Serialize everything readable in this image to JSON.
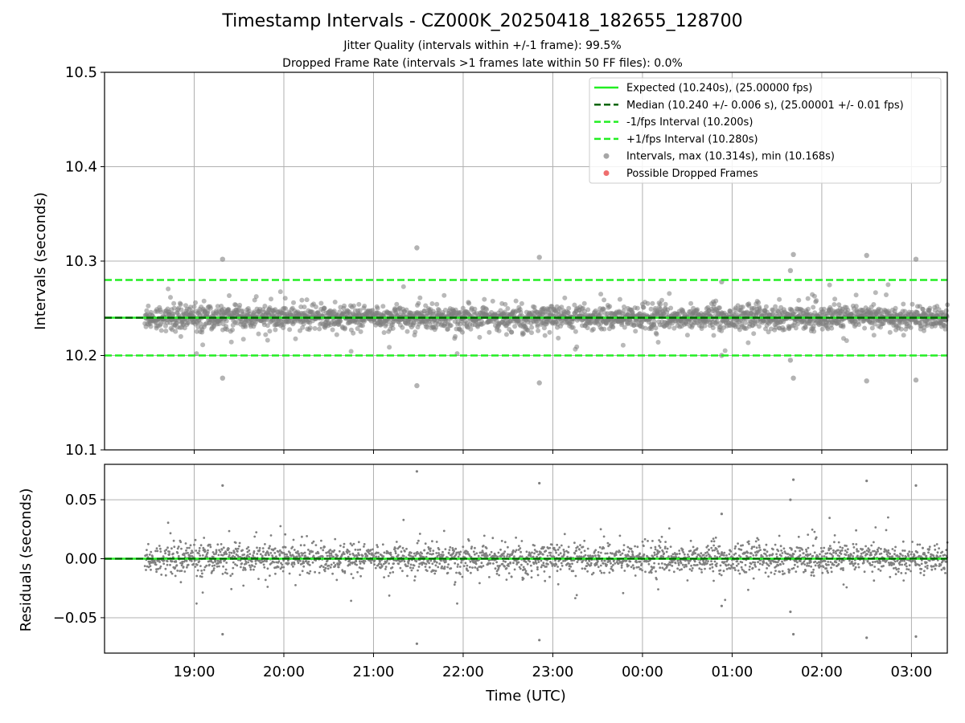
{
  "chart_data": [
    {
      "type": "scatter",
      "title": "Timestamp Intervals - CZ000K_20250418_182655_128700",
      "subtitle_1": "Jitter Quality (intervals within +/-1 frame): 99.5%",
      "subtitle_2": "Dropped Frame Rate (intervals >1 frames late within 50 FF files): 0.0%",
      "ylabel": "Intervals (seconds)",
      "ylim": [
        10.1,
        10.5
      ],
      "yticks": [
        "10.1",
        "10.2",
        "10.3",
        "10.4",
        "10.5"
      ],
      "grid": true,
      "legend_placement": "top-right",
      "legend": [
        {
          "label": "Expected (10.240s), (25.00000 fps)",
          "style": "solid",
          "color": "#22ee22"
        },
        {
          "label": "Median (10.240 +/- 0.006 s), (25.00001 +/- 0.01 fps)",
          "style": "dashed",
          "color": "#006400"
        },
        {
          "label": "-1/fps Interval (10.200s)",
          "style": "dashed",
          "color": "#22ee22"
        },
        {
          "label": "+1/fps Interval (10.280s)",
          "style": "dashed",
          "color": "#22ee22"
        },
        {
          "label": "Intervals, max (10.314s), min (10.168s)",
          "style": "marker",
          "color": "#808080"
        },
        {
          "label": "Possible Dropped Frames",
          "style": "marker",
          "color": "#e83030"
        }
      ],
      "reference_lines": {
        "expected": 10.24,
        "median": 10.24,
        "minus_one_frame": 10.2,
        "plus_one_frame": 10.28
      },
      "x_start_hours_utc": 18.45,
      "x_end_hours_utc": 27.4,
      "interval_stats": {
        "max": 10.314,
        "min": 10.168,
        "median": 10.24,
        "typical_spread": 0.006
      },
      "highlighted_points": [
        {
          "time": "19:19",
          "y": 10.302
        },
        {
          "time": "19:19",
          "y": 10.176
        },
        {
          "time": "21:29",
          "y": 10.314
        },
        {
          "time": "21:29",
          "y": 10.168
        },
        {
          "time": "22:51",
          "y": 10.304
        },
        {
          "time": "22:51",
          "y": 10.171
        },
        {
          "time": "01:41",
          "y": 10.307
        },
        {
          "time": "01:41",
          "y": 10.176
        },
        {
          "time": "02:30",
          "y": 10.306
        },
        {
          "time": "02:30",
          "y": 10.173
        },
        {
          "time": "03:03",
          "y": 10.302
        },
        {
          "time": "03:03",
          "y": 10.174
        },
        {
          "time": "00:53",
          "y": 10.278
        },
        {
          "time": "00:53",
          "y": 10.2
        },
        {
          "time": "01:39",
          "y": 10.29
        },
        {
          "time": "01:39",
          "y": 10.195
        }
      ],
      "colors": {
        "points": "#808080",
        "expected": "#22ee22",
        "median": "#006400",
        "dropped": "#e83030",
        "grid": "#b0b0b0"
      }
    },
    {
      "type": "scatter",
      "ylabel": "Residuals (seconds)",
      "xlabel": "Time (UTC)",
      "ylim": [
        -0.08,
        0.08
      ],
      "yticks": [
        "−0.05",
        "0.00",
        "0.05"
      ],
      "xticks": [
        "19:00",
        "20:00",
        "21:00",
        "22:00",
        "23:00",
        "00:00",
        "01:00",
        "02:00",
        "03:00"
      ],
      "grid": true,
      "reference_line": 0.0,
      "residual_range": {
        "max": 0.074,
        "min": -0.072
      }
    }
  ]
}
